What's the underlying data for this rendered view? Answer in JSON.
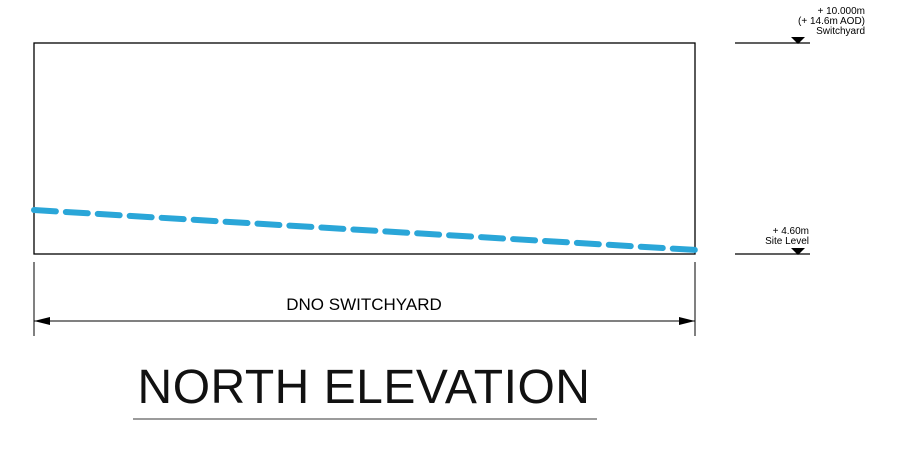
{
  "drawing": {
    "top_level": {
      "value": "+ 10.000m",
      "aod": "(+ 14.6m AOD)",
      "name": "Switchyard"
    },
    "site_level": {
      "value": "+ 4.60m",
      "name": "Site Level"
    },
    "dimension_label": "DNO SWITCHYARD",
    "title": "NORTH ELEVATION",
    "ground_line_color": "#2aa6d8"
  }
}
